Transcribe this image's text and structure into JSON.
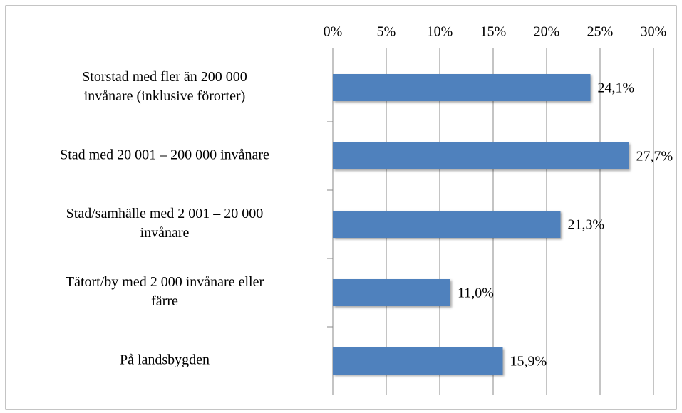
{
  "chart_data": {
    "type": "bar",
    "orientation": "horizontal",
    "categories": [
      "Storstad med fler än 200 000\ninvånare (inklusive förorter)",
      "Stad med 20 001 – 200 000 invånare",
      "Stad/samhälle med 2 001 – 20 000\ninvånare",
      "Tätort/by med 2 000 invånare eller\nfärre",
      "På landsbygden"
    ],
    "values": [
      24.1,
      27.7,
      21.3,
      11.0,
      15.9
    ],
    "value_labels": [
      "24,1%",
      "27,7%",
      "21,3%",
      "11,0%",
      "15,9%"
    ],
    "color": "#4f81bd",
    "xlim": [
      0,
      30
    ],
    "xticks": [
      {
        "value": 0,
        "label": "0%"
      },
      {
        "value": 5,
        "label": "5%"
      },
      {
        "value": 10,
        "label": "10%"
      },
      {
        "value": 15,
        "label": "15%"
      },
      {
        "value": 20,
        "label": "20%"
      },
      {
        "value": 25,
        "label": "25%"
      },
      {
        "value": 30,
        "label": "30%"
      }
    ],
    "grid": true
  }
}
